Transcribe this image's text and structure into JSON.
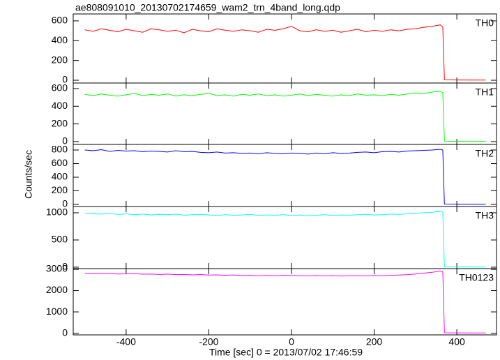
{
  "title": "ae808091010_20130702174659_wam2_trn_4band_long.qdp",
  "xlabel": "Time [sec] 0 = 2013/07/02 17:46:59",
  "ylabel": "Counts/sec",
  "chart_data": [
    {
      "type": "line",
      "xlim": [
        -528,
        496
      ],
      "ylim": [
        -28,
        670
      ],
      "xticks": [
        -400,
        -200,
        0,
        200,
        400
      ],
      "yticks": [
        0,
        200,
        400,
        600
      ],
      "x": [
        -500,
        -480,
        -460,
        -440,
        -420,
        -400,
        -380,
        -360,
        -340,
        -320,
        -300,
        -280,
        -260,
        -240,
        -220,
        -200,
        -180,
        -160,
        -140,
        -120,
        -100,
        -80,
        -60,
        -40,
        -20,
        0,
        20,
        40,
        60,
        80,
        100,
        120,
        140,
        160,
        180,
        200,
        220,
        240,
        260,
        280,
        300,
        320,
        340,
        360,
        366,
        370,
        400,
        440,
        470
      ],
      "series": [
        {
          "name": "TH0",
          "color": "#ff0000",
          "values": [
            510,
            495,
            520,
            505,
            490,
            515,
            500,
            485,
            520,
            510,
            495,
            505,
            480,
            515,
            500,
            490,
            520,
            505,
            495,
            510,
            500,
            485,
            515,
            505,
            520,
            545,
            500,
            490,
            510,
            495,
            505,
            485,
            500,
            515,
            490,
            505,
            495,
            510,
            500,
            515,
            520,
            535,
            545,
            560,
            540,
            5,
            3,
            2,
            2
          ]
        }
      ]
    },
    {
      "type": "line",
      "xlim": [
        -528,
        496
      ],
      "ylim": [
        -32,
        663
      ],
      "xticks": [
        -400,
        -200,
        0,
        200,
        400
      ],
      "yticks": [
        0,
        200,
        400,
        600
      ],
      "x": [
        -500,
        -480,
        -460,
        -440,
        -420,
        -400,
        -380,
        -360,
        -340,
        -320,
        -300,
        -280,
        -260,
        -240,
        -220,
        -200,
        -180,
        -160,
        -140,
        -120,
        -100,
        -80,
        -60,
        -40,
        -20,
        0,
        20,
        40,
        60,
        80,
        100,
        120,
        140,
        160,
        180,
        200,
        220,
        240,
        260,
        280,
        300,
        320,
        340,
        360,
        366,
        370,
        400,
        440,
        470
      ],
      "series": [
        {
          "name": "TH1",
          "color": "#00ff00",
          "values": [
            535,
            520,
            540,
            525,
            515,
            530,
            545,
            520,
            535,
            525,
            540,
            515,
            530,
            520,
            535,
            545,
            520,
            530,
            515,
            535,
            525,
            540,
            520,
            530,
            515,
            525,
            540,
            520,
            535,
            525,
            515,
            530,
            520,
            540,
            525,
            530,
            520,
            535,
            525,
            540,
            550,
            545,
            560,
            570,
            555,
            5,
            3,
            2,
            2
          ]
        }
      ]
    },
    {
      "type": "line",
      "xlim": [
        -528,
        496
      ],
      "ylim": [
        -31,
        882
      ],
      "xticks": [
        -400,
        -200,
        0,
        200,
        400
      ],
      "yticks": [
        0,
        200,
        400,
        600,
        800
      ],
      "x": [
        -500,
        -480,
        -460,
        -440,
        -420,
        -400,
        -380,
        -360,
        -340,
        -320,
        -300,
        -280,
        -260,
        -240,
        -220,
        -200,
        -180,
        -160,
        -140,
        -120,
        -100,
        -80,
        -60,
        -40,
        -20,
        0,
        20,
        40,
        60,
        80,
        100,
        120,
        140,
        160,
        180,
        200,
        220,
        240,
        260,
        280,
        300,
        320,
        340,
        360,
        366,
        370,
        400,
        440,
        470
      ],
      "series": [
        {
          "name": "TH2",
          "color": "#0000ff",
          "values": [
            800,
            790,
            805,
            780,
            795,
            785,
            790,
            775,
            785,
            780,
            770,
            790,
            775,
            780,
            765,
            760,
            770,
            755,
            760,
            750,
            755,
            745,
            760,
            750,
            745,
            755,
            750,
            740,
            755,
            745,
            760,
            750,
            755,
            765,
            770,
            760,
            775,
            780,
            770,
            785,
            790,
            795,
            800,
            810,
            800,
            5,
            3,
            2,
            2
          ]
        }
      ]
    },
    {
      "type": "line",
      "xlim": [
        -528,
        496
      ],
      "ylim": [
        -26,
        1115
      ],
      "xticks": [
        -400,
        -200,
        0,
        200,
        400
      ],
      "yticks": [
        0,
        500,
        1000
      ],
      "x": [
        -500,
        -480,
        -460,
        -440,
        -420,
        -400,
        -380,
        -360,
        -340,
        -320,
        -300,
        -280,
        -260,
        -240,
        -220,
        -200,
        -180,
        -160,
        -140,
        -120,
        -100,
        -80,
        -60,
        -40,
        -20,
        0,
        20,
        40,
        60,
        80,
        100,
        120,
        140,
        160,
        180,
        200,
        220,
        240,
        260,
        280,
        300,
        320,
        340,
        360,
        366,
        370,
        400,
        440,
        470
      ],
      "series": [
        {
          "name": "TH3",
          "color": "#00ffff",
          "values": [
            990,
            980,
            975,
            985,
            970,
            980,
            965,
            975,
            960,
            970,
            965,
            975,
            955,
            965,
            970,
            960,
            950,
            965,
            955,
            960,
            970,
            950,
            960,
            955,
            965,
            950,
            960,
            945,
            955,
            965,
            950,
            960,
            955,
            965,
            970,
            960,
            965,
            975,
            970,
            980,
            990,
            1000,
            1010,
            1030,
            1010,
            6,
            4,
            3,
            3
          ]
        }
      ]
    },
    {
      "type": "line",
      "xlim": [
        -528,
        496
      ],
      "ylim": [
        -80,
        3034
      ],
      "xticks": [
        -400,
        -200,
        0,
        200,
        400
      ],
      "yticks": [
        0,
        1000,
        2000,
        3000
      ],
      "x": [
        -500,
        -480,
        -460,
        -440,
        -420,
        -400,
        -380,
        -360,
        -340,
        -320,
        -300,
        -280,
        -260,
        -240,
        -220,
        -200,
        -180,
        -160,
        -140,
        -120,
        -100,
        -80,
        -60,
        -40,
        -20,
        0,
        20,
        40,
        60,
        80,
        100,
        120,
        140,
        160,
        180,
        200,
        220,
        240,
        260,
        280,
        300,
        320,
        340,
        360,
        366,
        370,
        400,
        440,
        470
      ],
      "series": [
        {
          "name": "TH0123",
          "color": "#ff00ff",
          "values": [
            2820,
            2800,
            2790,
            2810,
            2780,
            2790,
            2800,
            2770,
            2780,
            2760,
            2775,
            2750,
            2760,
            2740,
            2755,
            2730,
            2740,
            2720,
            2735,
            2710,
            2720,
            2700,
            2715,
            2700,
            2720,
            2710,
            2700,
            2690,
            2705,
            2690,
            2700,
            2685,
            2695,
            2700,
            2690,
            2705,
            2700,
            2720,
            2730,
            2750,
            2780,
            2820,
            2860,
            2920,
            2890,
            20,
            14,
            10,
            10
          ]
        }
      ]
    }
  ]
}
